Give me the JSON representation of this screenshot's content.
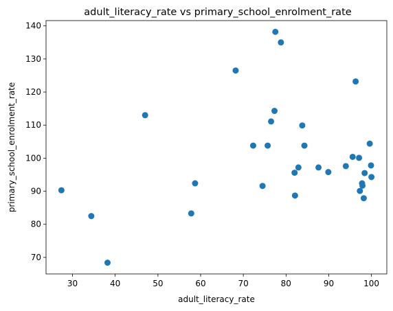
{
  "chart_data": {
    "type": "scatter",
    "title": "adult_literacy_rate vs primary_school_enrolment_rate",
    "xlabel": "adult_literacy_rate",
    "ylabel": "primary_school_enrolment_rate",
    "xlim": [
      23.8,
      103.6
    ],
    "ylim": [
      65.0,
      141.6
    ],
    "xticks": [
      30,
      40,
      50,
      60,
      70,
      80,
      90,
      100
    ],
    "yticks": [
      70,
      80,
      90,
      100,
      110,
      120,
      130,
      140
    ],
    "grid": false,
    "marker_color": "#1f77b4",
    "points": [
      {
        "x": 27.4,
        "y": 90.3
      },
      {
        "x": 34.4,
        "y": 82.5
      },
      {
        "x": 38.2,
        "y": 68.4
      },
      {
        "x": 47.0,
        "y": 113.0
      },
      {
        "x": 57.8,
        "y": 83.3
      },
      {
        "x": 58.7,
        "y": 92.4
      },
      {
        "x": 68.2,
        "y": 126.5
      },
      {
        "x": 72.3,
        "y": 103.8
      },
      {
        "x": 74.5,
        "y": 91.6
      },
      {
        "x": 75.7,
        "y": 103.8
      },
      {
        "x": 76.5,
        "y": 111.1
      },
      {
        "x": 77.3,
        "y": 114.3
      },
      {
        "x": 77.5,
        "y": 138.2
      },
      {
        "x": 78.8,
        "y": 135.0
      },
      {
        "x": 82.0,
        "y": 95.6
      },
      {
        "x": 82.1,
        "y": 88.7
      },
      {
        "x": 82.9,
        "y": 97.2
      },
      {
        "x": 83.8,
        "y": 109.9
      },
      {
        "x": 84.3,
        "y": 103.8
      },
      {
        "x": 87.6,
        "y": 97.2
      },
      {
        "x": 89.9,
        "y": 95.8
      },
      {
        "x": 94.0,
        "y": 97.6
      },
      {
        "x": 95.6,
        "y": 100.4
      },
      {
        "x": 96.3,
        "y": 123.2
      },
      {
        "x": 97.1,
        "y": 100.1
      },
      {
        "x": 97.3,
        "y": 90.1
      },
      {
        "x": 97.8,
        "y": 92.4
      },
      {
        "x": 97.9,
        "y": 91.7
      },
      {
        "x": 98.2,
        "y": 87.9
      },
      {
        "x": 98.4,
        "y": 95.5
      },
      {
        "x": 99.6,
        "y": 104.4
      },
      {
        "x": 99.9,
        "y": 97.8
      },
      {
        "x": 100.0,
        "y": 94.3
      }
    ]
  }
}
